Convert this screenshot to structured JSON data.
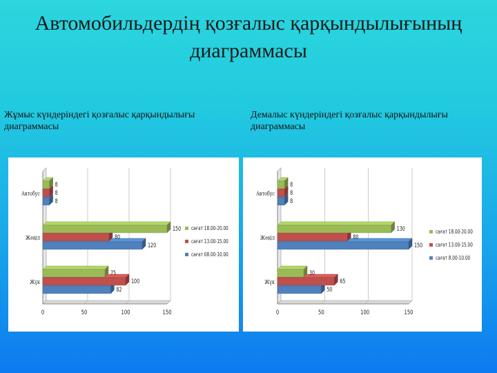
{
  "page": {
    "title_line1": "Автомобильдердің қозғалыс қарқындылығының",
    "title_line2": "диаграммасы"
  },
  "chart_data": [
    {
      "type": "bar",
      "orientation": "horizontal",
      "title_line1": "Жұмыс күндеріндегі қозғалыс қарқындылығы",
      "title_line2": "диаграммасы",
      "categories": [
        "Жүк",
        "Жеңіл",
        "Автобус"
      ],
      "series": [
        {
          "name": "сағат 08.00-10.00",
          "color": "#4f81bd",
          "values": [
            82,
            120,
            8
          ]
        },
        {
          "name": "сағат 13.00-15.00",
          "color": "#c0504d",
          "values": [
            100,
            80,
            8
          ]
        },
        {
          "name": "сағат 18.00-20.00",
          "color": "#9bbb59",
          "values": [
            75,
            150,
            8
          ]
        }
      ],
      "xlim": [
        0,
        150
      ],
      "xticks": [
        "0",
        "50",
        "100",
        "150"
      ],
      "legend": "right",
      "grid": true
    },
    {
      "type": "bar",
      "orientation": "horizontal",
      "title_line1": "Демалыс күндеріндегі қозғалыс қарқындылығы",
      "title_line2": "диаграммасы",
      "categories": [
        "Жүк",
        "Жеңіл",
        "Автобус"
      ],
      "series": [
        {
          "name": "сағат 8.00-10.00",
          "color": "#4f81bd",
          "values": [
            50,
            150,
            8
          ]
        },
        {
          "name": "сағат 13.00-15.00",
          "color": "#c0504d",
          "values": [
            65,
            80,
            8
          ]
        },
        {
          "name": "сағат 18.00-20.00",
          "color": "#9bbb59",
          "values": [
            30,
            130,
            8
          ]
        }
      ],
      "xlim": [
        0,
        150
      ],
      "xticks": [
        "0",
        "50",
        "100",
        "150"
      ],
      "legend": "right",
      "grid": true
    }
  ]
}
